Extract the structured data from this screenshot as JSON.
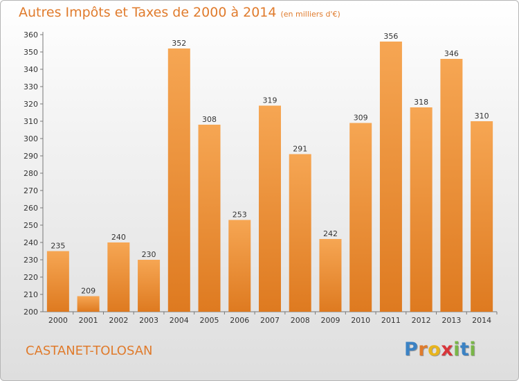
{
  "title": "Autres Impôts et Taxes de 2000 à 2014",
  "title_unit": "(en milliers d'€)",
  "location": "CASTANET-TOLOSAN",
  "brand": {
    "letters": [
      "P",
      "r",
      "o",
      "x",
      "i",
      "t",
      "i"
    ],
    "colors": [
      "#3b82c4",
      "#e07b2c",
      "#e8b41c",
      "#d8353a",
      "#7ab648",
      "#3b82c4",
      "#7ab648"
    ]
  },
  "colors": {
    "bar_top": "#f6a653",
    "bar_bottom": "#de7a20",
    "label": "#333333",
    "text_accent": "#e07b2c"
  },
  "chart_data": {
    "type": "bar",
    "categories": [
      "2000",
      "2001",
      "2002",
      "2003",
      "2004",
      "2005",
      "2006",
      "2007",
      "2008",
      "2009",
      "2010",
      "2011",
      "2012",
      "2013",
      "2014"
    ],
    "values": [
      235,
      209,
      240,
      230,
      352,
      308,
      253,
      319,
      291,
      242,
      309,
      356,
      318,
      346,
      310
    ],
    "ylim": [
      200,
      360
    ],
    "yticks": [
      200,
      210,
      220,
      230,
      240,
      250,
      260,
      270,
      280,
      290,
      300,
      310,
      320,
      330,
      340,
      350,
      360
    ],
    "data_labels": true,
    "grid": false
  }
}
